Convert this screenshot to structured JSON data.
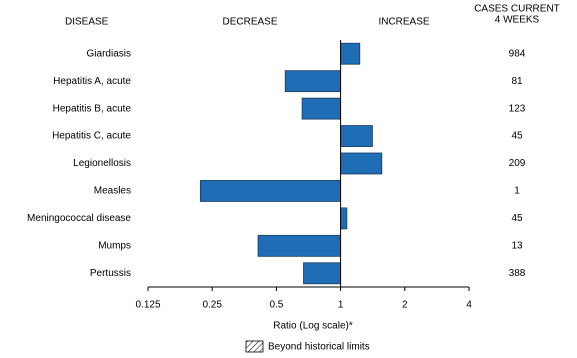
{
  "chart_data": {
    "type": "bar",
    "orientation": "horizontal",
    "column_headers": {
      "disease": "DISEASE",
      "decrease": "DECREASE",
      "increase": "INCREASE",
      "cases": [
        "CASES CURRENT",
        "4 WEEKS"
      ]
    },
    "categories": [
      "Giardiasis",
      "Hepatitis A, acute",
      "Hepatitis B, acute",
      "Hepatitis C, acute",
      "Legionellosis",
      "Measles",
      "Meningococcal disease",
      "Mumps",
      "Pertussis"
    ],
    "values": [
      1.23,
      0.55,
      0.66,
      1.41,
      1.56,
      0.22,
      1.07,
      0.41,
      0.67
    ],
    "cases": [
      984,
      81,
      123,
      45,
      209,
      1,
      45,
      13,
      388
    ],
    "color": "#1f6db5",
    "xlim": [
      0.125,
      4
    ],
    "xticks": [
      0.125,
      0.25,
      0.5,
      1,
      2,
      4
    ],
    "log_scale": true,
    "baseline": 1,
    "xlabel": "Ratio (Log scale)*",
    "legend": "Beyond historical limits"
  }
}
